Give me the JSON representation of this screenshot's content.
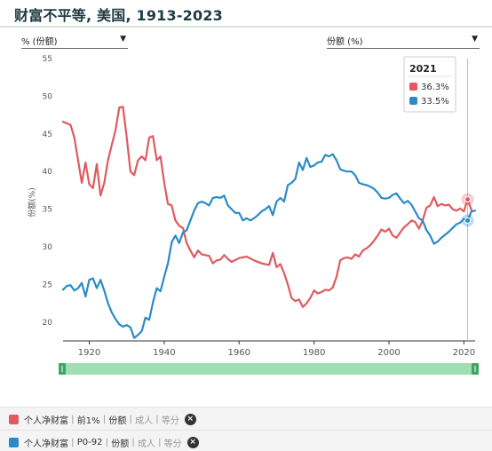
{
  "title": "财富不平等, 美国, 1913-2023",
  "selectors": {
    "left": "% (份额)",
    "right": "份额 (%)"
  },
  "tooltip": {
    "year": "2021",
    "top1": "36.3%",
    "bottom": "33.5%"
  },
  "legend": [
    {
      "label": "个人净财富",
      "parts": [
        "前1%",
        "份额",
        "成人",
        "等分"
      ],
      "color": "#e05a5f"
    },
    {
      "label": "个人净财富",
      "parts": [
        "P0-92",
        "份额",
        "成人",
        "等分"
      ],
      "color": "#2b8bc6"
    }
  ],
  "chart_data": {
    "type": "line",
    "ylabel": "份额(%)",
    "xlim": [
      1913,
      2023
    ],
    "ylim": [
      17.5,
      55
    ],
    "yticks": [
      20,
      25,
      30,
      35,
      40,
      45,
      50,
      55
    ],
    "xticks": [
      1920,
      1940,
      1960,
      1980,
      2000,
      2020
    ],
    "grid": false,
    "series": [
      {
        "name": "个人净财富|前1%|份额|成人|等分",
        "color": "#e05a5f",
        "points": [
          [
            1913,
            46.6
          ],
          [
            1915,
            46.2
          ],
          [
            1916,
            44.5
          ],
          [
            1917,
            41.5
          ],
          [
            1918,
            38.5
          ],
          [
            1919,
            41.2
          ],
          [
            1920,
            38.3
          ],
          [
            1921,
            37.8
          ],
          [
            1922,
            41.0
          ],
          [
            1923,
            36.8
          ],
          [
            1924,
            38.5
          ],
          [
            1925,
            41.5
          ],
          [
            1926,
            43.5
          ],
          [
            1927,
            45.5
          ],
          [
            1928,
            48.5
          ],
          [
            1929,
            48.6
          ],
          [
            1930,
            44.5
          ],
          [
            1931,
            40.0
          ],
          [
            1932,
            39.5
          ],
          [
            1933,
            41.5
          ],
          [
            1934,
            42.0
          ],
          [
            1935,
            41.5
          ],
          [
            1936,
            44.5
          ],
          [
            1937,
            44.7
          ],
          [
            1938,
            41.5
          ],
          [
            1939,
            42.0
          ],
          [
            1940,
            38.5
          ],
          [
            1941,
            35.7
          ],
          [
            1942,
            35.5
          ],
          [
            1943,
            33.5
          ],
          [
            1944,
            32.8
          ],
          [
            1945,
            32.5
          ],
          [
            1946,
            30.5
          ],
          [
            1947,
            29.5
          ],
          [
            1948,
            28.6
          ],
          [
            1949,
            29.5
          ],
          [
            1950,
            29.0
          ],
          [
            1952,
            28.8
          ],
          [
            1953,
            27.8
          ],
          [
            1954,
            28.2
          ],
          [
            1955,
            28.3
          ],
          [
            1956,
            28.9
          ],
          [
            1957,
            28.4
          ],
          [
            1958,
            28.0
          ],
          [
            1960,
            28.5
          ],
          [
            1962,
            28.7
          ],
          [
            1964,
            28.2
          ],
          [
            1966,
            27.8
          ],
          [
            1968,
            27.6
          ],
          [
            1969,
            29.2
          ],
          [
            1970,
            27.3
          ],
          [
            1971,
            27.7
          ],
          [
            1972,
            26.5
          ],
          [
            1973,
            25.0
          ],
          [
            1974,
            23.2
          ],
          [
            1975,
            22.8
          ],
          [
            1976,
            23.0
          ],
          [
            1977,
            22.0
          ],
          [
            1978,
            22.5
          ],
          [
            1979,
            23.2
          ],
          [
            1980,
            24.2
          ],
          [
            1981,
            23.8
          ],
          [
            1982,
            24.0
          ],
          [
            1983,
            24.3
          ],
          [
            1984,
            24.2
          ],
          [
            1985,
            24.6
          ],
          [
            1986,
            26.0
          ],
          [
            1987,
            28.2
          ],
          [
            1988,
            28.5
          ],
          [
            1989,
            28.6
          ],
          [
            1990,
            28.4
          ],
          [
            1991,
            29.0
          ],
          [
            1992,
            28.7
          ],
          [
            1993,
            29.5
          ],
          [
            1994,
            29.8
          ],
          [
            1995,
            30.2
          ],
          [
            1996,
            30.8
          ],
          [
            1997,
            31.5
          ],
          [
            1998,
            32.3
          ],
          [
            1999,
            32.0
          ],
          [
            2000,
            32.4
          ],
          [
            2001,
            31.5
          ],
          [
            2002,
            31.2
          ],
          [
            2003,
            31.9
          ],
          [
            2004,
            32.6
          ],
          [
            2005,
            33.0
          ],
          [
            2006,
            33.5
          ],
          [
            2007,
            33.3
          ],
          [
            2008,
            32.4
          ],
          [
            2009,
            33.5
          ],
          [
            2010,
            35.2
          ],
          [
            2011,
            35.5
          ],
          [
            2012,
            36.6
          ],
          [
            2013,
            35.4
          ],
          [
            2014,
            35.7
          ],
          [
            2015,
            35.5
          ],
          [
            2016,
            35.6
          ],
          [
            2017,
            35.0
          ],
          [
            2018,
            34.8
          ],
          [
            2019,
            35.1
          ],
          [
            2020,
            34.7
          ],
          [
            2021,
            36.3
          ],
          [
            2022,
            34.9
          ]
        ]
      },
      {
        "name": "个人净财富|P0-92|份额|成人|等分",
        "color": "#2b8bc6",
        "points": [
          [
            1913,
            24.3
          ],
          [
            1914,
            24.8
          ],
          [
            1915,
            24.9
          ],
          [
            1916,
            24.2
          ],
          [
            1917,
            24.5
          ],
          [
            1918,
            25.2
          ],
          [
            1919,
            23.4
          ],
          [
            1920,
            25.6
          ],
          [
            1921,
            25.8
          ],
          [
            1922,
            24.5
          ],
          [
            1923,
            25.6
          ],
          [
            1924,
            24.2
          ],
          [
            1925,
            22.5
          ],
          [
            1926,
            21.3
          ],
          [
            1927,
            20.4
          ],
          [
            1928,
            19.7
          ],
          [
            1929,
            19.4
          ],
          [
            1930,
            19.6
          ],
          [
            1931,
            19.3
          ],
          [
            1932,
            17.9
          ],
          [
            1933,
            18.3
          ],
          [
            1934,
            18.8
          ],
          [
            1935,
            20.6
          ],
          [
            1936,
            20.3
          ],
          [
            1937,
            22.6
          ],
          [
            1938,
            24.5
          ],
          [
            1939,
            24.1
          ],
          [
            1940,
            26.0
          ],
          [
            1941,
            27.8
          ],
          [
            1942,
            30.6
          ],
          [
            1943,
            31.5
          ],
          [
            1944,
            30.5
          ],
          [
            1945,
            31.9
          ],
          [
            1946,
            32.2
          ],
          [
            1947,
            33.5
          ],
          [
            1948,
            34.8
          ],
          [
            1949,
            35.8
          ],
          [
            1950,
            36.0
          ],
          [
            1951,
            35.8
          ],
          [
            1952,
            35.5
          ],
          [
            1953,
            36.5
          ],
          [
            1954,
            36.6
          ],
          [
            1955,
            36.5
          ],
          [
            1956,
            36.8
          ],
          [
            1957,
            35.5
          ],
          [
            1958,
            35.0
          ],
          [
            1959,
            34.5
          ],
          [
            1960,
            34.5
          ],
          [
            1961,
            33.5
          ],
          [
            1962,
            33.8
          ],
          [
            1963,
            33.5
          ],
          [
            1964,
            33.8
          ],
          [
            1965,
            34.2
          ],
          [
            1966,
            34.7
          ],
          [
            1967,
            35.0
          ],
          [
            1968,
            35.4
          ],
          [
            1969,
            34.2
          ],
          [
            1970,
            36.0
          ],
          [
            1971,
            36.5
          ],
          [
            1972,
            36.0
          ],
          [
            1973,
            38.2
          ],
          [
            1974,
            38.5
          ],
          [
            1975,
            39.0
          ],
          [
            1976,
            41.2
          ],
          [
            1977,
            40.2
          ],
          [
            1978,
            41.8
          ],
          [
            1979,
            40.6
          ],
          [
            1980,
            40.8
          ],
          [
            1981,
            41.2
          ],
          [
            1982,
            41.3
          ],
          [
            1983,
            42.2
          ],
          [
            1984,
            42.0
          ],
          [
            1985,
            42.3
          ],
          [
            1986,
            41.5
          ],
          [
            1987,
            40.3
          ],
          [
            1988,
            40.1
          ],
          [
            1989,
            40.0
          ],
          [
            1990,
            40.0
          ],
          [
            1991,
            39.5
          ],
          [
            1992,
            38.5
          ],
          [
            1993,
            38.3
          ],
          [
            1994,
            38.2
          ],
          [
            1995,
            38.0
          ],
          [
            1996,
            37.7
          ],
          [
            1997,
            37.2
          ],
          [
            1998,
            36.5
          ],
          [
            1999,
            36.4
          ],
          [
            2000,
            36.5
          ],
          [
            2001,
            36.9
          ],
          [
            2002,
            37.1
          ],
          [
            2003,
            36.4
          ],
          [
            2004,
            35.8
          ],
          [
            2005,
            36.1
          ],
          [
            2006,
            35.6
          ],
          [
            2007,
            34.7
          ],
          [
            2008,
            33.8
          ],
          [
            2009,
            33.5
          ],
          [
            2010,
            32.2
          ],
          [
            2011,
            31.5
          ],
          [
            2012,
            30.4
          ],
          [
            2013,
            30.7
          ],
          [
            2014,
            31.2
          ],
          [
            2015,
            31.6
          ],
          [
            2016,
            32.0
          ],
          [
            2017,
            32.5
          ],
          [
            2018,
            33.0
          ],
          [
            2019,
            33.2
          ],
          [
            2020,
            33.7
          ],
          [
            2021,
            33.5
          ],
          [
            2022,
            34.7
          ],
          [
            2023,
            34.8
          ]
        ]
      }
    ],
    "highlight_year": 2021
  }
}
